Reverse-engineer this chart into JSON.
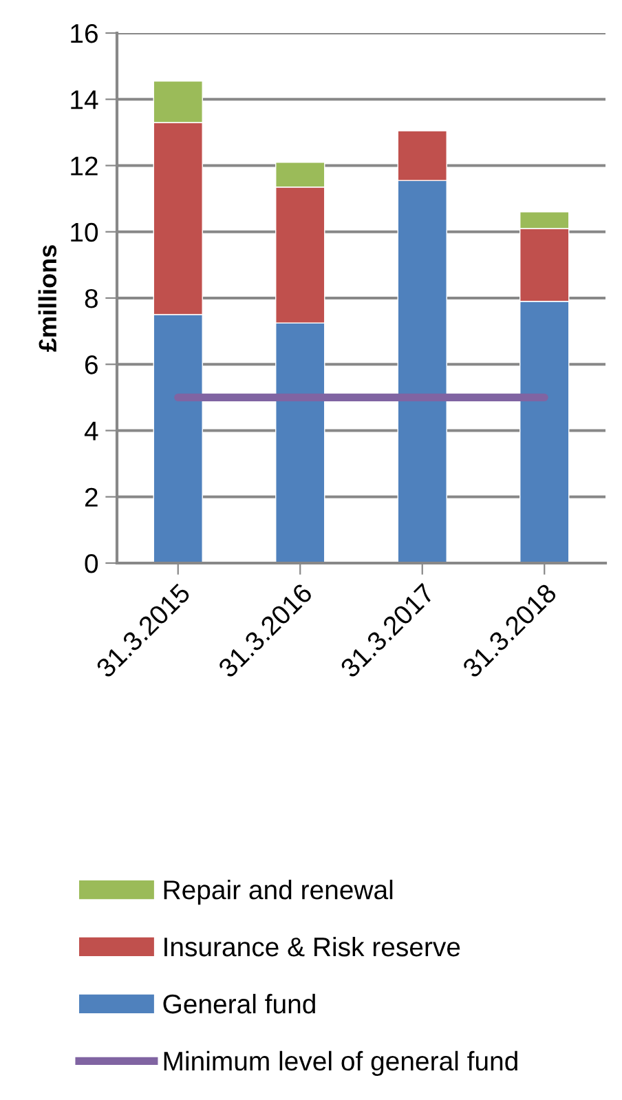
{
  "chart_data": {
    "type": "bar",
    "stacked": true,
    "ylabel": "£millions",
    "categories": [
      "31.3.2015",
      "31.3.2016",
      "31.3.2017",
      "31.3.2018"
    ],
    "series": [
      {
        "name": "General fund",
        "color": "#4f81bd",
        "values": [
          7.5,
          7.25,
          11.55,
          7.9
        ]
      },
      {
        "name": "Insurance & Risk reserve",
        "color": "#c0504d",
        "values": [
          5.8,
          4.1,
          1.5,
          2.2
        ]
      },
      {
        "name": "Repair and renewal",
        "color": "#9bbb59",
        "values": [
          1.25,
          0.75,
          null,
          0.5
        ]
      },
      {
        "name": "Minimum level of general fund",
        "type": "line",
        "color": "#8064a2",
        "values": [
          5,
          5,
          5,
          5
        ]
      }
    ],
    "ylim": [
      0,
      16
    ],
    "yticks": [
      0,
      2,
      4,
      6,
      8,
      10,
      12,
      14,
      16
    ],
    "grid": "y",
    "legend": "bottom"
  }
}
